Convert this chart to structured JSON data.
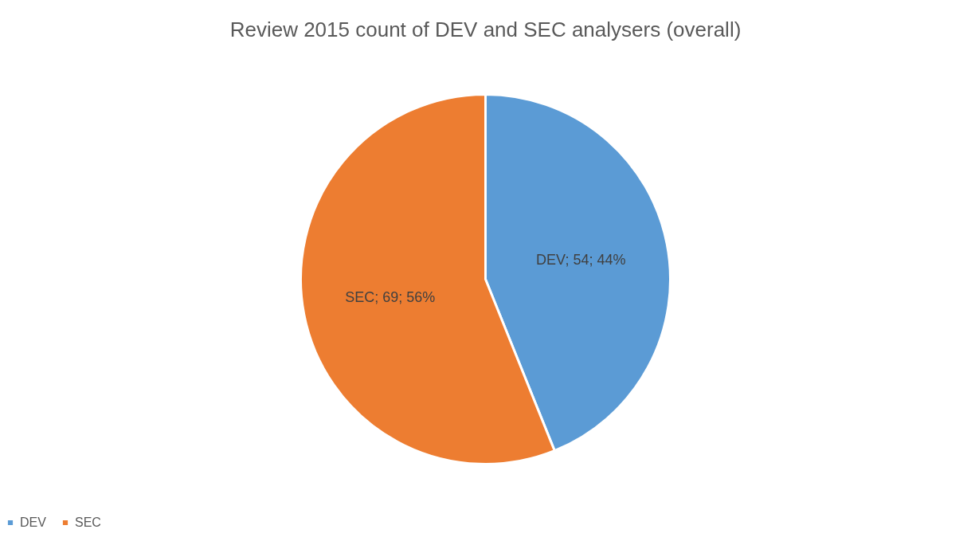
{
  "chart_data": {
    "type": "pie",
    "title": "Review 2015 count of DEV and SEC analysers (overall)",
    "categories": [
      "DEV",
      "SEC"
    ],
    "values": [
      54,
      69
    ],
    "colors": [
      "#5b9bd5",
      "#ed7d31"
    ],
    "value_labels": [
      "DEV; 54; 44%",
      "SEC; 69; 56%"
    ],
    "legend": "bottom"
  }
}
